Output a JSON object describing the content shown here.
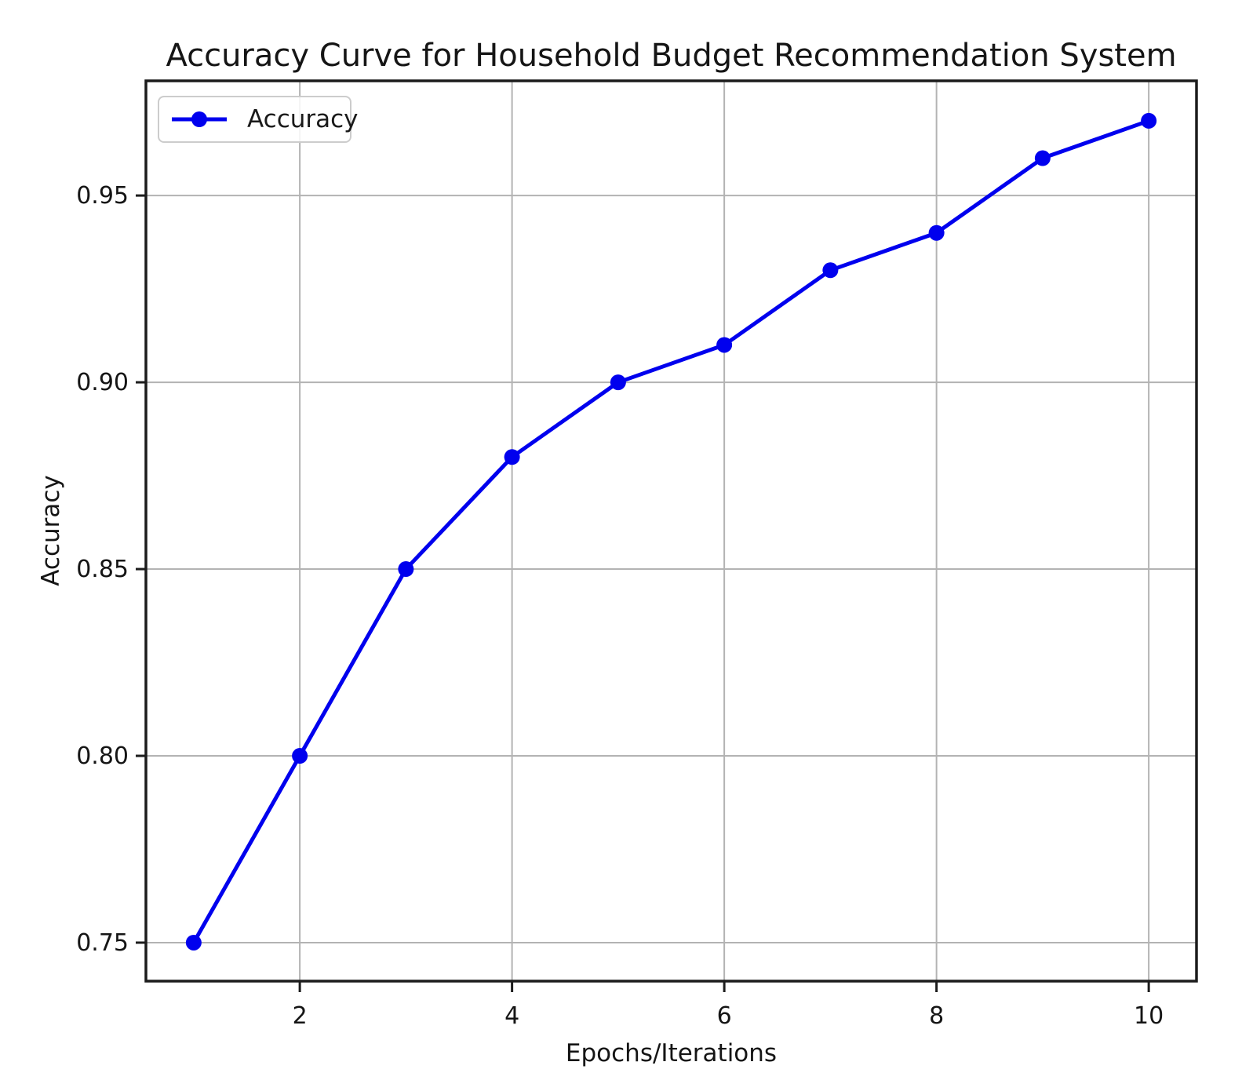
{
  "figure": {
    "title": "Accuracy Curve for Household Budget Recommendation System"
  },
  "chart_data": {
    "type": "line",
    "title": "Accuracy Curve for Household Budget Recommendation System",
    "xlabel": "Epochs/Iterations",
    "ylabel": "Accuracy",
    "x": [
      1,
      2,
      3,
      4,
      5,
      6,
      7,
      8,
      9,
      10
    ],
    "series": [
      {
        "name": "Accuracy",
        "values": [
          0.75,
          0.8,
          0.85,
          0.88,
          0.9,
          0.91,
          0.93,
          0.94,
          0.96,
          0.97
        ],
        "color": "#0000ee",
        "marker": "circle"
      }
    ],
    "xlim": [
      0.55,
      10.45
    ],
    "ylim": [
      0.7397,
      0.9807
    ],
    "xticks": [
      2,
      4,
      6,
      8,
      10
    ],
    "xtick_labels": [
      "2",
      "4",
      "6",
      "8",
      "10"
    ],
    "yticks": [
      0.75,
      0.8,
      0.85,
      0.9,
      0.95
    ],
    "ytick_labels": [
      "0.75",
      "0.80",
      "0.85",
      "0.90",
      "0.95"
    ],
    "grid": true,
    "legend": {
      "label": "Accuracy",
      "position": "upper left"
    }
  },
  "style": {
    "line_color": "#0000ee",
    "marker_color": "#0000ee",
    "grid_color": "#b3b3b3",
    "spine_color": "#1c1c1c",
    "text_color": "#151515",
    "legend_border_color": "#cccccc",
    "background_color": "#ffffff"
  }
}
